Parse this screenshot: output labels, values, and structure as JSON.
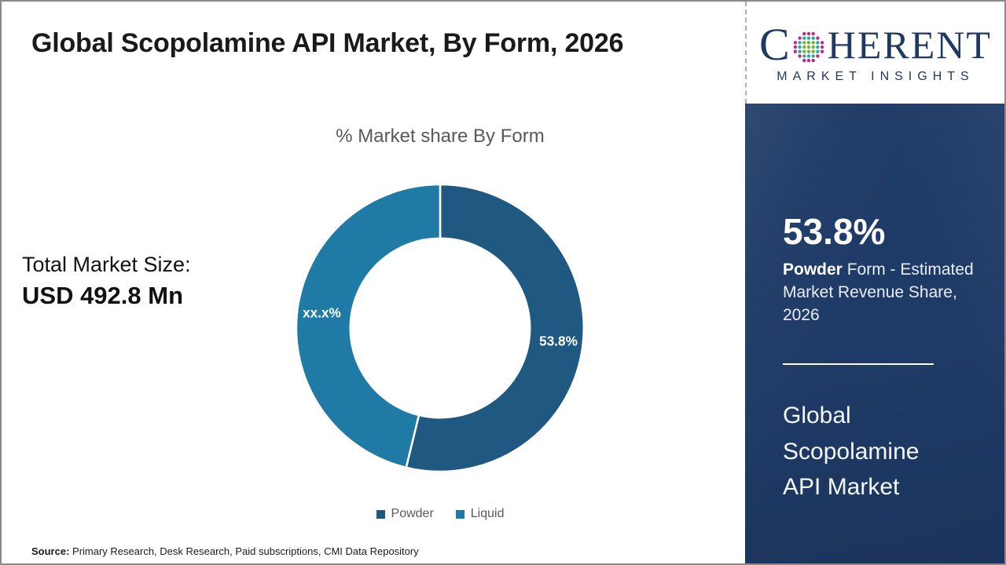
{
  "page": {
    "title": "Global Scopolamine API Market, By Form, 2026"
  },
  "logo": {
    "prefix": "C",
    "suffix": "HERENT",
    "tagline": "MARKET INSIGHTS",
    "navy": "#1F3864",
    "globe_colors": [
      "#6FB53C",
      "#2FA8A2",
      "#BE2A8C"
    ]
  },
  "left_panel": {
    "total_label": "Total Market Size:",
    "total_value": "USD 492.8 Mn"
  },
  "chart_data": {
    "type": "pie",
    "variant": "donut",
    "title": "% Market share By Form",
    "categories": [
      "Powder",
      "Liquid"
    ],
    "values": [
      53.8,
      46.2
    ],
    "value_labels": [
      "53.8%",
      "xx.x%"
    ],
    "colors": [
      "#1F5880",
      "#1F7AA6"
    ],
    "legend_position": "bottom",
    "start_angle_deg": 0,
    "direction": "clockwise"
  },
  "sidebar": {
    "stat_value": "53.8%",
    "desc_bold": "Powder",
    "desc_rest": " Form - Estimated Market Revenue Share, 2026",
    "market_name": "Global Scopolamine API Market"
  },
  "footer": {
    "source_label": "Source:",
    "source_rest": " Primary Research, Desk Research, Paid subscriptions, CMI Data Repository"
  },
  "theme": {
    "sidebar_bg": "#1E3A66",
    "title_color": "#1a1a1a",
    "muted_text": "#595959",
    "border_gray": "#8a8a8a"
  }
}
